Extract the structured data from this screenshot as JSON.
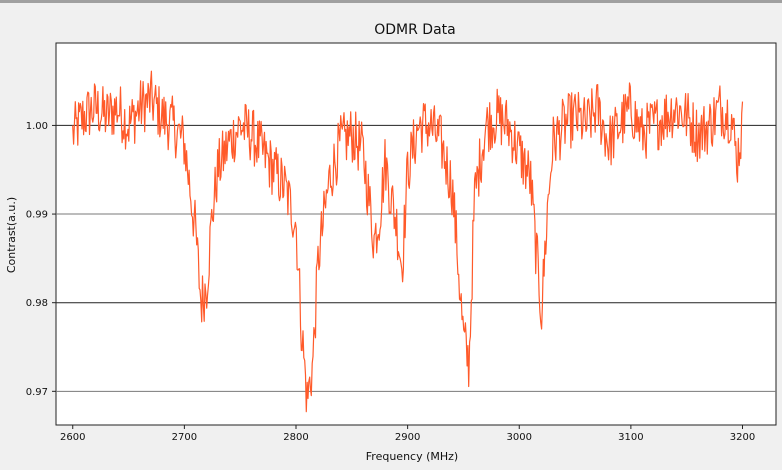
{
  "chart_data": {
    "type": "line",
    "title": "ODMR Data",
    "xlabel": "Frequency (MHz)",
    "ylabel": "Contrast(a.u.)",
    "xlim": [
      2585,
      3230
    ],
    "ylim": [
      0.9662,
      1.0093
    ],
    "x_ticks": [
      2600,
      2700,
      2800,
      2900,
      3000,
      3100,
      3200
    ],
    "x_tick_labels": [
      "2600",
      "2700",
      "2800",
      "2900",
      "3000",
      "3100",
      "3200"
    ],
    "y_ticks": [
      0.97,
      0.98,
      0.99,
      1.0
    ],
    "y_tick_labels": [
      "0.97",
      "0.98",
      "0.99",
      "1.00"
    ],
    "grid": "horizontal",
    "line_color": "#ff5a2a",
    "series": [
      {
        "x": [
          2600,
          2610,
          2620,
          2630,
          2640,
          2650,
          2660,
          2670,
          2680,
          2690,
          2700,
          2705,
          2710,
          2715,
          2720,
          2725,
          2730,
          2740,
          2750,
          2760,
          2770,
          2780,
          2790,
          2800,
          2805,
          2810,
          2815,
          2820,
          2830,
          2840,
          2850,
          2860,
          2865,
          2870,
          2875,
          2880,
          2885,
          2890,
          2895,
          2900,
          2910,
          2920,
          2930,
          2940,
          2945,
          2950,
          2955,
          2960,
          2970,
          2980,
          2990,
          3000,
          3010,
          3015,
          3020,
          3025,
          3030,
          3040,
          3050,
          3060,
          3070,
          3080,
          3090,
          3100,
          3110,
          3120,
          3130,
          3140,
          3150,
          3160,
          3170,
          3180,
          3190,
          3195,
          3200
        ],
        "y": [
          0.999,
          1.001,
          1.002,
          1.001,
          1.002,
          1.0,
          1.002,
          1.003,
          1.001,
          1.0,
          0.998,
          0.993,
          0.988,
          0.98,
          0.982,
          0.99,
          0.995,
          0.998,
          1.0,
          0.999,
          0.997,
          0.995,
          0.993,
          0.989,
          0.977,
          0.969,
          0.973,
          0.985,
          0.994,
          0.998,
          0.999,
          0.997,
          0.992,
          0.987,
          0.99,
          0.996,
          0.992,
          0.989,
          0.984,
          0.995,
          1.0,
          1.0,
          0.998,
          0.993,
          0.985,
          0.976,
          0.973,
          0.992,
          1.0,
          1.001,
          1.0,
          0.997,
          0.994,
          0.986,
          0.979,
          0.99,
          0.998,
          1.0,
          1.001,
          1.0,
          1.002,
          0.998,
          1.0,
          1.002,
          0.999,
          1.0,
          1.001,
          1.002,
          1.001,
          0.999,
          1.0,
          1.002,
          1.001,
          0.996,
          1.0
        ]
      }
    ]
  }
}
